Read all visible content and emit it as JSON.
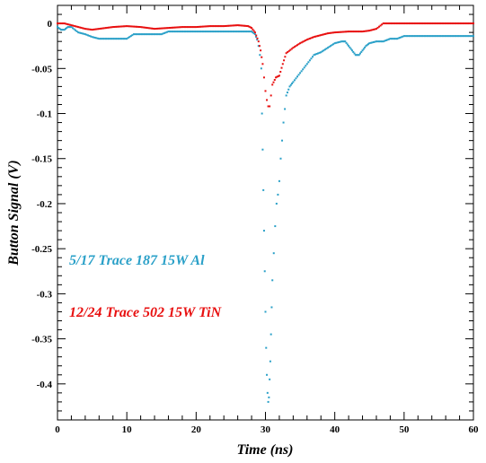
{
  "chart_data": {
    "type": "scatter",
    "xlabel": "Time (ns)",
    "ylabel": "Button Signal (V)",
    "xlim": [
      0,
      60
    ],
    "ylim": [
      -0.44,
      0.02
    ],
    "x_ticks": [
      0,
      10,
      20,
      30,
      40,
      50,
      60
    ],
    "x_tick_labels": [
      "0",
      "10",
      "20",
      "30",
      "40",
      "50",
      "60"
    ],
    "y_ticks": [
      0,
      -0.05,
      -0.1,
      -0.15,
      -0.2,
      -0.25,
      -0.3,
      -0.35,
      -0.4
    ],
    "y_tick_labels": [
      "0",
      "-0.05",
      "-0.1",
      "-0.15",
      "-0.2",
      "-0.25",
      "-0.3",
      "-0.35",
      "-0.4"
    ],
    "grid": false,
    "series": [
      {
        "name": "5/17 Trace 187 15W Al",
        "color": "#2aa0c8",
        "points": [
          [
            0,
            -0.004
          ],
          [
            0.5,
            -0.007
          ],
          [
            1,
            -0.007
          ],
          [
            1.5,
            -0.004
          ],
          [
            2,
            -0.004
          ],
          [
            3,
            -0.01
          ],
          [
            4,
            -0.012
          ],
          [
            5,
            -0.015
          ],
          [
            6,
            -0.017
          ],
          [
            8,
            -0.017
          ],
          [
            10,
            -0.017
          ],
          [
            11,
            -0.012
          ],
          [
            12,
            -0.012
          ],
          [
            15,
            -0.012
          ],
          [
            16,
            -0.009
          ],
          [
            20,
            -0.009
          ],
          [
            24,
            -0.009
          ],
          [
            27,
            -0.009
          ],
          [
            28,
            -0.009
          ],
          [
            28.5,
            -0.012
          ],
          [
            28.8,
            -0.018
          ],
          [
            29,
            -0.025
          ],
          [
            29.2,
            -0.035
          ],
          [
            29.4,
            -0.05
          ],
          [
            29.5,
            -0.1
          ],
          [
            29.6,
            -0.14
          ],
          [
            29.7,
            -0.185
          ],
          [
            29.8,
            -0.23
          ],
          [
            29.9,
            -0.275
          ],
          [
            30,
            -0.32
          ],
          [
            30.1,
            -0.36
          ],
          [
            30.2,
            -0.39
          ],
          [
            30.3,
            -0.41
          ],
          [
            30.4,
            -0.42
          ],
          [
            30.5,
            -0.415
          ],
          [
            30.6,
            -0.395
          ],
          [
            30.7,
            -0.375
          ],
          [
            30.8,
            -0.345
          ],
          [
            30.9,
            -0.315
          ],
          [
            31,
            -0.285
          ],
          [
            31.2,
            -0.255
          ],
          [
            31.4,
            -0.225
          ],
          [
            31.6,
            -0.2
          ],
          [
            31.8,
            -0.19
          ],
          [
            32,
            -0.175
          ],
          [
            32.2,
            -0.15
          ],
          [
            32.4,
            -0.13
          ],
          [
            32.6,
            -0.11
          ],
          [
            32.8,
            -0.095
          ],
          [
            33,
            -0.08
          ],
          [
            33.5,
            -0.07
          ],
          [
            34,
            -0.065
          ],
          [
            35,
            -0.055
          ],
          [
            36,
            -0.045
          ],
          [
            37,
            -0.035
          ],
          [
            38,
            -0.032
          ],
          [
            39,
            -0.027
          ],
          [
            40,
            -0.022
          ],
          [
            41,
            -0.02
          ],
          [
            41.5,
            -0.02
          ],
          [
            42,
            -0.025
          ],
          [
            42.5,
            -0.03
          ],
          [
            43,
            -0.035
          ],
          [
            43.5,
            -0.035
          ],
          [
            44,
            -0.03
          ],
          [
            44.5,
            -0.025
          ],
          [
            45,
            -0.022
          ],
          [
            46,
            -0.02
          ],
          [
            47,
            -0.02
          ],
          [
            48,
            -0.017
          ],
          [
            49,
            -0.017
          ],
          [
            50,
            -0.014
          ],
          [
            52,
            -0.014
          ],
          [
            54,
            -0.014
          ],
          [
            55,
            -0.014
          ],
          [
            56,
            -0.014
          ],
          [
            58,
            -0.014
          ],
          [
            60,
            -0.014
          ]
        ]
      },
      {
        "name": "12/24 Trace 502 15W TiN",
        "color": "#e81010",
        "points": [
          [
            0,
            0.0
          ],
          [
            1,
            0.0
          ],
          [
            2,
            -0.002
          ],
          [
            3,
            -0.004
          ],
          [
            4,
            -0.006
          ],
          [
            5,
            -0.007
          ],
          [
            6,
            -0.006
          ],
          [
            8,
            -0.004
          ],
          [
            10,
            -0.003
          ],
          [
            12,
            -0.004
          ],
          [
            14,
            -0.006
          ],
          [
            16,
            -0.005
          ],
          [
            18,
            -0.004
          ],
          [
            20,
            -0.004
          ],
          [
            22,
            -0.003
          ],
          [
            24,
            -0.003
          ],
          [
            26,
            -0.002
          ],
          [
            27.5,
            -0.003
          ],
          [
            28,
            -0.005
          ],
          [
            28.5,
            -0.01
          ],
          [
            29,
            -0.02
          ],
          [
            29.3,
            -0.03
          ],
          [
            29.6,
            -0.045
          ],
          [
            29.8,
            -0.06
          ],
          [
            30,
            -0.075
          ],
          [
            30.2,
            -0.085
          ],
          [
            30.4,
            -0.092
          ],
          [
            30.6,
            -0.092
          ],
          [
            30.8,
            -0.08
          ],
          [
            31,
            -0.068
          ],
          [
            31.5,
            -0.06
          ],
          [
            32,
            -0.058
          ],
          [
            32.5,
            -0.045
          ],
          [
            33,
            -0.033
          ],
          [
            34,
            -0.027
          ],
          [
            35,
            -0.022
          ],
          [
            36,
            -0.018
          ],
          [
            37,
            -0.015
          ],
          [
            38,
            -0.013
          ],
          [
            39,
            -0.011
          ],
          [
            40,
            -0.01
          ],
          [
            42,
            -0.009
          ],
          [
            44,
            -0.009
          ],
          [
            45,
            -0.008
          ],
          [
            46,
            -0.006
          ],
          [
            47,
            0.0
          ],
          [
            48,
            0.0
          ],
          [
            50,
            0.0
          ],
          [
            52,
            0.0
          ],
          [
            54,
            0.0
          ],
          [
            56,
            0.0
          ],
          [
            58,
            0.0
          ],
          [
            60,
            0.0
          ]
        ]
      }
    ],
    "legend": {
      "placement": "left-middle",
      "entries": [
        {
          "label": "5/17 Trace 187 15W Al",
          "color": "#2aa0c8"
        },
        {
          "label": "12/24 Trace 502 15W TiN",
          "color": "#e81010"
        }
      ]
    }
  }
}
